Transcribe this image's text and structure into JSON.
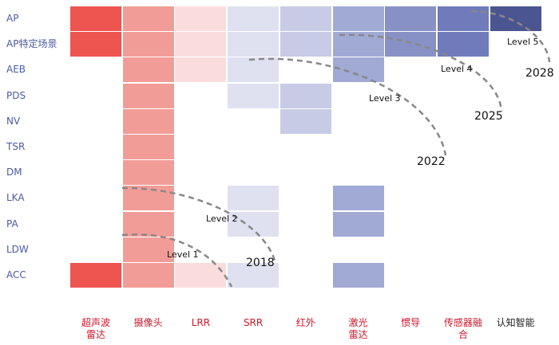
{
  "colors": {
    "row_label": "#4b5aa3",
    "col_label": "#d0152a",
    "col_label_last": "#222222",
    "arc": "#888888",
    "cell_colors": {
      "ultrasonic_strong": "#ee5450",
      "camera": "#f29c97",
      "lrr": "#fbdcdc",
      "light": "#dfe1f0",
      "lavender": "#c7cbe5",
      "blue_mid": "#a1a9d5",
      "blue_dark": "#8791c6",
      "blue_deeper": "#6f7bbb",
      "navy": "#4b5590"
    }
  },
  "rows": [
    {
      "label": "AP"
    },
    {
      "label": "AP特定场景"
    },
    {
      "label": "AEB"
    },
    {
      "label": "PDS"
    },
    {
      "label": "NV"
    },
    {
      "label": "TSR"
    },
    {
      "label": "DM"
    },
    {
      "label": "LKA"
    },
    {
      "label": "PA"
    },
    {
      "label": "LDW"
    },
    {
      "label": "ACC"
    }
  ],
  "columns": [
    {
      "label": "超声波\n雷达"
    },
    {
      "label": "摄像头"
    },
    {
      "label": "LRR"
    },
    {
      "label": "SRR"
    },
    {
      "label": "红外"
    },
    {
      "label": "激光\n雷达"
    },
    {
      "label": "惯导"
    },
    {
      "label": "传感器融\n合"
    },
    {
      "label": "认知智能"
    }
  ],
  "matrix": [
    [
      "ultrasonic_strong",
      "camera",
      "lrr",
      "light",
      "lavender",
      "blue_mid",
      "blue_dark",
      "blue_deeper",
      "navy"
    ],
    [
      "ultrasonic_strong",
      "camera",
      "lrr",
      "light",
      "lavender",
      "blue_mid",
      "blue_dark",
      "blue_deeper",
      null
    ],
    [
      null,
      "camera",
      "lrr",
      "light",
      null,
      "blue_mid",
      null,
      null,
      null
    ],
    [
      null,
      "camera",
      null,
      "light",
      "lavender",
      null,
      null,
      null,
      null
    ],
    [
      null,
      "camera",
      null,
      null,
      "lavender",
      null,
      null,
      null,
      null
    ],
    [
      null,
      "camera",
      null,
      null,
      null,
      null,
      null,
      null,
      null
    ],
    [
      null,
      "camera",
      null,
      null,
      null,
      null,
      null,
      null,
      null
    ],
    [
      null,
      "camera",
      null,
      "light",
      null,
      "blue_mid",
      null,
      null,
      null
    ],
    [
      null,
      "camera",
      null,
      "light",
      null,
      "blue_mid",
      null,
      null,
      null
    ],
    [
      null,
      "camera",
      null,
      null,
      null,
      null,
      null,
      null,
      null
    ],
    [
      "ultrasonic_strong",
      "camera",
      "lrr",
      "light",
      null,
      "blue_mid",
      null,
      null,
      null
    ]
  ],
  "levels": [
    {
      "label": "Level 1",
      "year": "2018"
    },
    {
      "label": "Level 2",
      "year": ""
    },
    {
      "label": "Level 3",
      "year": "2022"
    },
    {
      "label": "Level 4",
      "year": "2025"
    },
    {
      "label": "Level 5",
      "year": "2028"
    }
  ]
}
